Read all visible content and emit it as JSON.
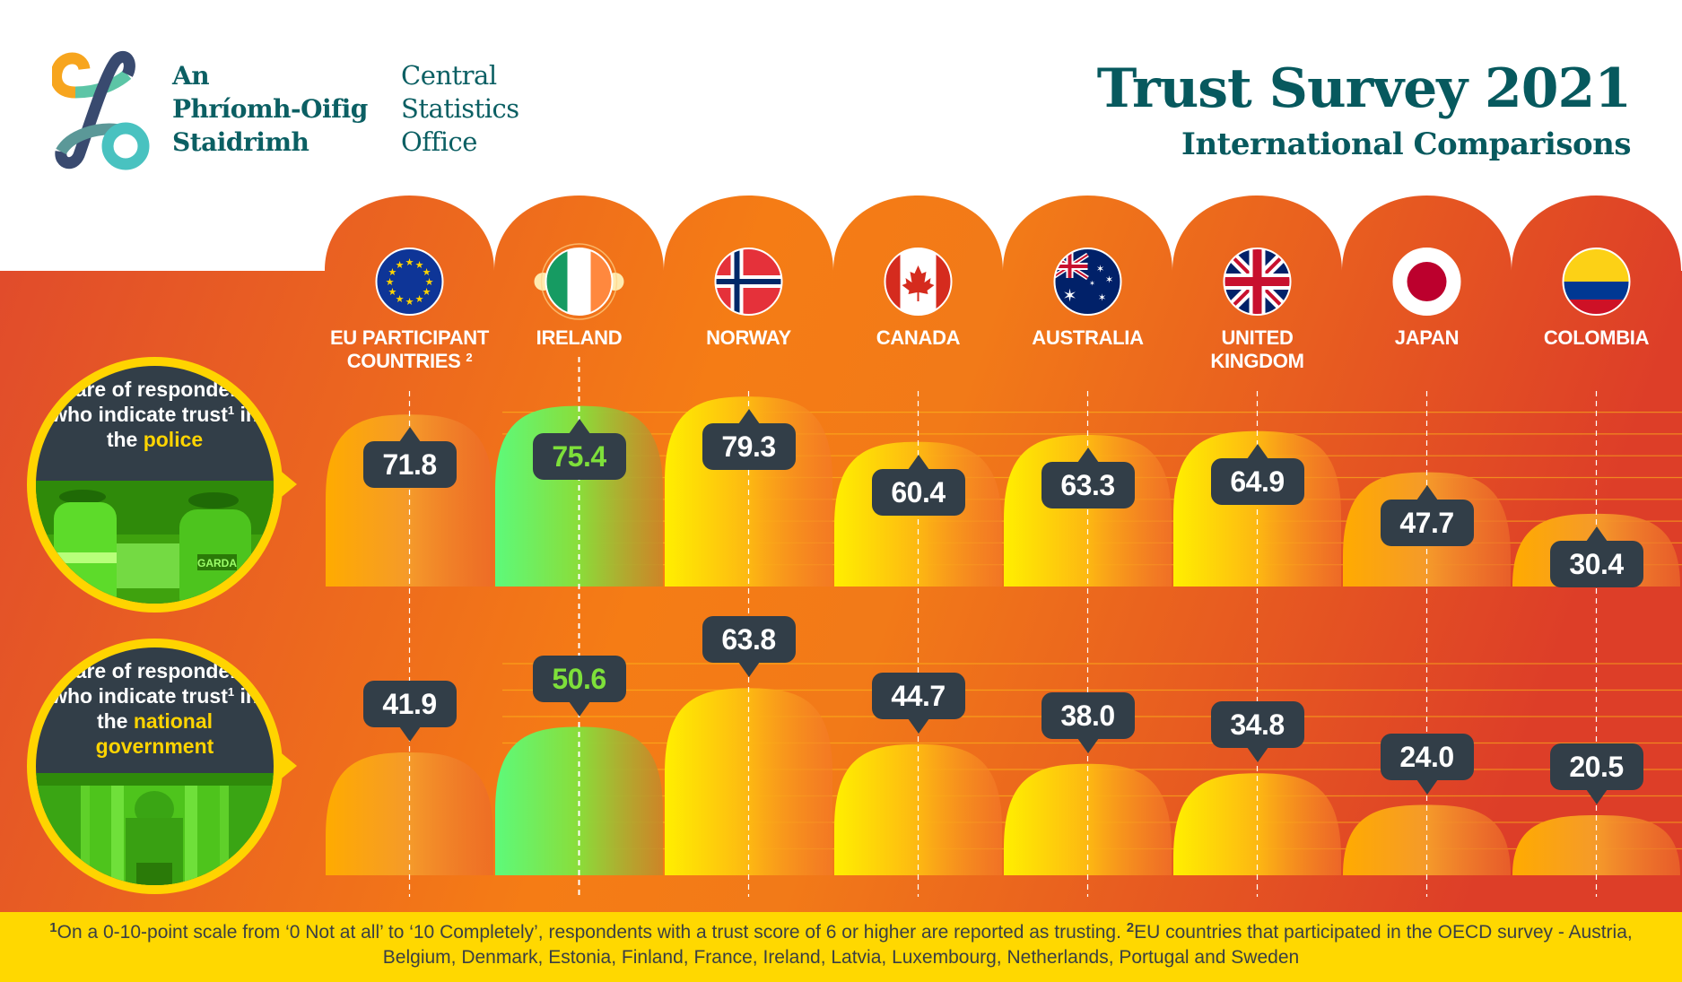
{
  "header": {
    "logo_irish_lines": [
      "An",
      "Phríomh-Oifig",
      "Staidrimh"
    ],
    "logo_english_lines": [
      "Central",
      "Statistics",
      "Office"
    ],
    "title": "Trust Survey 2021",
    "subtitle": "International Comparisons"
  },
  "colors": {
    "brand_teal": "#07595e",
    "background_orange": "#f07a1e",
    "background_red": "#e04a2c",
    "badge": "#323e48",
    "highlight_yellow": "#ffd400",
    "ireland_highlight": "#7ee03a"
  },
  "rows": [
    {
      "label_prefix": "Share of respondents who indicate trust",
      "label_sup": "1",
      "label_middle": " in the ",
      "label_highlight": "police",
      "photo": "garda-photo"
    },
    {
      "label_prefix": "Share of respondents who indicate trust",
      "label_sup": "1",
      "label_middle": " in the ",
      "label_highlight": "national government",
      "photo": "government-buildings-photo"
    }
  ],
  "chart_data": {
    "type": "bar",
    "title": "Trust Survey 2021 - International Comparisons",
    "xlabel": "",
    "ylabel": "Share of respondents (%)",
    "categories": [
      "EU PARTICIPANT COUNTRIES",
      "IRELAND",
      "NORWAY",
      "CANADA",
      "AUSTRALIA",
      "UNITED KINGDOM",
      "JAPAN",
      "COLOMBIA"
    ],
    "category_sups": [
      "2",
      "",
      "",
      "",
      "",
      "",
      "",
      ""
    ],
    "highlight_category": "IRELAND",
    "flag_icons": [
      "eu-flag-icon",
      "ireland-flag-icon",
      "norway-flag-icon",
      "canada-flag-icon",
      "australia-flag-icon",
      "uk-flag-icon",
      "japan-flag-icon",
      "colombia-flag-icon"
    ],
    "series": [
      {
        "name": "Trust in the police",
        "values": [
          71.8,
          75.4,
          79.3,
          60.4,
          63.3,
          64.9,
          47.7,
          30.4
        ],
        "labels": [
          "71.8",
          "75.4",
          "79.3",
          "60.4",
          "63.3",
          "64.9",
          "47.7",
          "30.4"
        ]
      },
      {
        "name": "Trust in the national government",
        "values": [
          41.9,
          50.6,
          63.8,
          44.7,
          38.0,
          34.8,
          24.0,
          20.5
        ],
        "labels": [
          "41.9",
          "50.6",
          "63.8",
          "44.7",
          "38.0",
          "34.8",
          "24.0",
          "20.5"
        ]
      }
    ],
    "grid": true
  },
  "footer": {
    "note1_sup": "1",
    "note1": "On a 0-10-point scale from ‘0 Not at all’ to ‘10 Completely’, respondents with a trust score of 6 or higher are reported as trusting. ",
    "note2_sup": "2",
    "note2": "EU countries that participated in the OECD survey - Austria, Belgium, Denmark, Estonia, Finland, France, Ireland, Latvia, Luxembourg, Netherlands, Portugal and Sweden"
  }
}
